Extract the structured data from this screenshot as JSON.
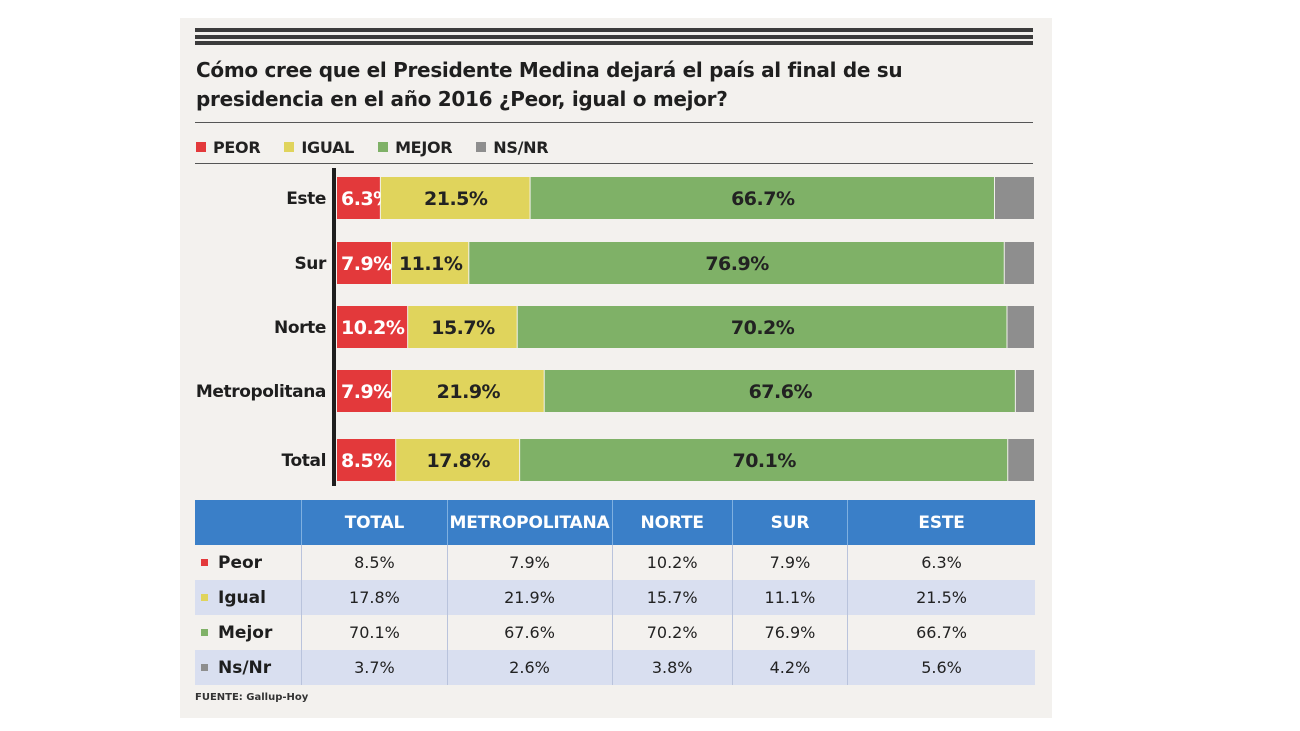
{
  "title": "Cómo cree que el Presidente Medina dejará el país al final  de su presidencia en el año 2016 ¿Peor, igual o mejor?",
  "colors": {
    "peor": "#e3393b",
    "igual": "#e0d45c",
    "mejor": "#7fb167",
    "nsnr": "#8e8e8e",
    "header": "#3a7fc8"
  },
  "legend": [
    {
      "label": "PEOR",
      "color": "#e3393b"
    },
    {
      "label": "IGUAL",
      "color": "#e0d45c"
    },
    {
      "label": "MEJOR",
      "color": "#7fb167"
    },
    {
      "label": "NS/NR",
      "color": "#8e8e8e"
    }
  ],
  "chart_data": {
    "type": "bar",
    "orientation": "horizontal",
    "stacked": true,
    "categories": [
      "Este",
      "Sur",
      "Norte",
      "Metropolitana",
      "Total"
    ],
    "series": [
      {
        "name": "PEOR",
        "values": [
          6.3,
          7.9,
          10.2,
          7.9,
          8.5
        ],
        "labels": [
          "6.3%",
          "7.9%",
          "10.2%",
          "7.9%",
          "8.5%"
        ]
      },
      {
        "name": "IGUAL",
        "values": [
          21.5,
          11.1,
          15.7,
          21.9,
          17.8
        ],
        "labels": [
          "21.5%",
          "11.1%",
          "15.7%",
          "21.9%",
          "17.8%"
        ]
      },
      {
        "name": "MEJOR",
        "values": [
          66.7,
          76.9,
          70.2,
          67.6,
          70.1
        ],
        "labels": [
          "66.7%",
          "76.9%",
          "70.2%",
          "67.6%",
          "70.1%"
        ]
      },
      {
        "name": "NS/NR",
        "values": [
          5.6,
          4.2,
          3.8,
          2.6,
          3.7
        ],
        "labels": [
          "",
          "",
          "",
          "",
          ""
        ]
      }
    ],
    "xlim": [
      0,
      100
    ],
    "legend_position": "top-left"
  },
  "table": {
    "columns": [
      "TOTAL",
      "METROPOLITANA",
      "NORTE",
      "SUR",
      "ESTE"
    ],
    "rows": [
      {
        "label": "Peor",
        "color": "#e3393b",
        "values": [
          "8.5%",
          "7.9%",
          "10.2%",
          "7.9%",
          "6.3%"
        ]
      },
      {
        "label": "Igual",
        "color": "#e0d45c",
        "values": [
          "17.8%",
          "21.9%",
          "15.7%",
          "11.1%",
          "21.5%"
        ]
      },
      {
        "label": "Mejor",
        "color": "#7fb167",
        "values": [
          "70.1%",
          "67.6%",
          "70.2%",
          "76.9%",
          "66.7%"
        ]
      },
      {
        "label": "Ns/Nr",
        "color": "#8e8e8e",
        "values": [
          "3.7%",
          "2.6%",
          "3.8%",
          "4.2%",
          "5.6%"
        ]
      }
    ]
  },
  "source": "FUENTE: Gallup-Hoy"
}
